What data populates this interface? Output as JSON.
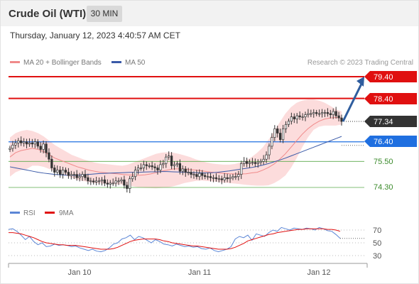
{
  "header": {
    "title": "Crude Oil (WTI)",
    "timeframe": "30 MIN",
    "timestamp": "Thursday, January 12, 2023 4:40:57 AM CET"
  },
  "legend": {
    "ma20_label": "MA 20 + Bollinger Bands",
    "ma50_label": "MA 50",
    "credit": "Research © 2023 Trading Central",
    "rsi_label": "RSI",
    "rsi_ma_label": "9MA"
  },
  "colors": {
    "resistance": "#e01010",
    "support": "#5aaa4a",
    "pivot": "#1f6fe0",
    "price_box": "#333333",
    "ma20": "#f08a8a",
    "ma50": "#3a5aa8",
    "bollinger": "#fcdcdc",
    "up_candle": "#ffffff",
    "down_candle": "#333333",
    "arrow": "#2f5d9e",
    "rsi": "#5b86d6",
    "rsi_ma": "#e01010"
  },
  "chart_data": [
    {
      "type": "candlestick",
      "ylim": [
        73.9,
        79.6
      ],
      "x_ticks": [
        "Jan 10",
        "Jan 11",
        "Jan 12"
      ],
      "levels": {
        "resistance": [
          79.4,
          78.4
        ],
        "pivot": 76.4,
        "support": [
          75.5,
          74.3
        ],
        "last_price": 77.34
      },
      "level_labels": [
        "79.40",
        "78.40",
        "77.34",
        "76.40",
        "75.50",
        "74.30"
      ],
      "close": [
        76.1,
        76.25,
        76.35,
        76.45,
        76.35,
        76.4,
        76.3,
        76.35,
        76.3,
        76.4,
        76.2,
        76.05,
        76.3,
        75.9,
        75.6,
        75.2,
        75.0,
        75.1,
        74.9,
        75.1,
        75.0,
        74.85,
        74.9,
        74.9,
        74.75,
        74.8,
        74.9,
        74.75,
        74.6,
        74.6,
        74.55,
        74.6,
        74.6,
        74.65,
        74.5,
        74.45,
        74.5,
        74.5,
        74.6,
        74.6,
        74.65,
        74.4,
        74.25,
        74.7,
        74.8,
        75.1,
        75.2,
        75.2,
        75.35,
        75.3,
        75.3,
        75.25,
        75.2,
        75.1,
        75.35,
        75.4,
        75.7,
        75.75,
        75.3,
        75.35,
        75.4,
        75.05,
        75.15,
        75.0,
        75.0,
        74.9,
        74.9,
        74.8,
        74.95,
        74.85,
        74.8,
        74.8,
        74.75,
        74.75,
        74.7,
        74.7,
        74.65,
        74.75,
        74.7,
        74.75,
        74.8,
        74.8,
        74.9,
        75.4,
        75.5,
        75.4,
        75.45,
        75.45,
        75.4,
        75.45,
        75.5,
        75.6,
        75.8,
        76.2,
        76.6,
        77.0,
        76.8,
        76.5,
        77.0,
        77.2,
        77.35,
        77.55,
        77.45,
        77.6,
        77.55,
        77.55,
        77.65,
        77.7,
        77.7,
        77.75,
        77.7,
        77.7,
        77.75,
        77.75,
        77.7,
        77.65,
        77.8,
        77.6,
        77.5,
        77.34
      ],
      "open_offsets": [
        0.05,
        -0.08
      ],
      "ma20": [
        75.7,
        75.9,
        76.0,
        76.05,
        76.1,
        76.05,
        75.95,
        75.8,
        75.65,
        75.55,
        75.45,
        75.35,
        75.25,
        75.18,
        75.1,
        75.05,
        75.0,
        74.98,
        74.95,
        74.93,
        74.9,
        74.88,
        74.87,
        74.86,
        74.88,
        74.92,
        74.98,
        75.05,
        75.1,
        75.15,
        75.16,
        75.15,
        75.12,
        75.1,
        75.07,
        75.03,
        75.0,
        74.97,
        74.95,
        74.93,
        74.92,
        74.92,
        74.93,
        74.97,
        75.0,
        75.1,
        75.22,
        75.38,
        75.6,
        75.85,
        76.15,
        76.45,
        76.75,
        77.0,
        77.2,
        77.35,
        77.45,
        77.5,
        77.52,
        77.5
      ],
      "ma50": [
        75.25,
        75.2,
        75.15,
        75.1,
        75.05,
        75.0,
        74.96,
        74.93,
        74.9,
        74.88,
        74.86,
        74.85,
        74.86,
        74.88,
        74.9,
        74.92,
        74.94,
        74.95,
        74.96,
        74.97,
        74.98,
        74.99,
        75.0,
        75.0,
        75.01,
        75.02,
        75.02,
        75.03,
        75.03,
        75.02,
        75.01,
        75.0,
        74.99,
        74.98,
        74.97,
        74.97,
        74.98,
        75.0,
        75.03,
        75.06,
        75.1,
        75.14,
        75.18,
        75.22,
        75.27,
        75.33,
        75.4,
        75.48,
        75.56,
        75.65,
        75.75,
        75.85,
        75.95,
        76.05,
        76.15,
        76.25,
        76.35,
        76.45,
        76.55,
        76.65
      ],
      "bollinger_upper": [
        76.6,
        76.8,
        76.9,
        76.95,
        76.9,
        76.8,
        76.65,
        76.45,
        76.25,
        76.1,
        75.95,
        75.8,
        75.7,
        75.6,
        75.52,
        75.45,
        75.4,
        75.38,
        75.35,
        75.32,
        75.3,
        75.35,
        75.45,
        75.55,
        75.65,
        75.75,
        75.85,
        75.9,
        75.92,
        75.9,
        75.85,
        75.78,
        75.7,
        75.6,
        75.52,
        75.45,
        75.4,
        75.37,
        75.35,
        75.35,
        75.38,
        75.45,
        75.55,
        75.7,
        75.9,
        76.15,
        76.5,
        76.9,
        77.3,
        77.7,
        78.0,
        78.2,
        78.3,
        78.35,
        78.35,
        78.3,
        78.2,
        78.05,
        77.9,
        77.8
      ],
      "bollinger_lower": [
        74.8,
        75.0,
        75.1,
        75.15,
        75.3,
        75.3,
        75.25,
        75.15,
        75.05,
        74.95,
        74.85,
        74.75,
        74.65,
        74.6,
        74.55,
        74.5,
        74.48,
        74.46,
        74.45,
        74.44,
        74.43,
        74.4,
        74.35,
        74.3,
        74.28,
        74.27,
        74.26,
        74.28,
        74.3,
        74.35,
        74.42,
        74.5,
        74.55,
        74.6,
        74.62,
        74.6,
        74.58,
        74.55,
        74.52,
        74.5,
        74.48,
        74.45,
        74.42,
        74.4,
        74.38,
        74.38,
        74.4,
        74.5,
        74.65,
        74.85,
        75.2,
        75.65,
        76.15,
        76.6,
        76.95,
        77.1,
        77.15,
        77.15,
        77.15,
        77.2
      ],
      "projection_to": 79.4
    },
    {
      "type": "line",
      "name": "RSI",
      "ylim": [
        20,
        80
      ],
      "y_ticks": [
        70,
        50,
        30
      ],
      "y_tick_labels": [
        "70",
        "50",
        "30"
      ],
      "series": [
        {
          "name": "RSI",
          "values": [
            71,
            72,
            68,
            62,
            55,
            60,
            52,
            47,
            50,
            44,
            45,
            48,
            46,
            47,
            46,
            44,
            45,
            42,
            40,
            38,
            40,
            37,
            36,
            38,
            42,
            48,
            50,
            56,
            58,
            62,
            55,
            60,
            58,
            54,
            50,
            55,
            52,
            48,
            47,
            45,
            48,
            46,
            44,
            45,
            43,
            44,
            41,
            40,
            42,
            38,
            36,
            38,
            40,
            44,
            56,
            60,
            58,
            62,
            54,
            64,
            62,
            60,
            66,
            70,
            68,
            74,
            72,
            70,
            73,
            72,
            71,
            73,
            72,
            70,
            74,
            72,
            69,
            68,
            63,
            57
          ]
        },
        {
          "name": "9MA",
          "values": [
            66,
            66,
            65,
            64,
            62,
            60,
            58,
            55,
            52,
            50,
            49,
            48,
            47,
            47,
            46,
            46,
            46,
            45,
            44,
            43,
            42,
            41,
            40,
            40,
            40,
            41,
            43,
            46,
            49,
            52,
            54,
            55,
            56,
            56,
            56,
            56,
            55,
            53,
            52,
            50,
            49,
            48,
            47,
            46,
            45,
            45,
            44,
            43,
            42,
            41,
            40,
            40,
            40,
            41,
            43,
            46,
            49,
            53,
            55,
            57,
            59,
            61,
            63,
            64,
            66,
            67,
            68,
            69,
            70,
            71,
            71,
            72,
            72,
            72,
            72,
            72,
            71,
            71,
            70,
            68
          ]
        }
      ]
    }
  ]
}
